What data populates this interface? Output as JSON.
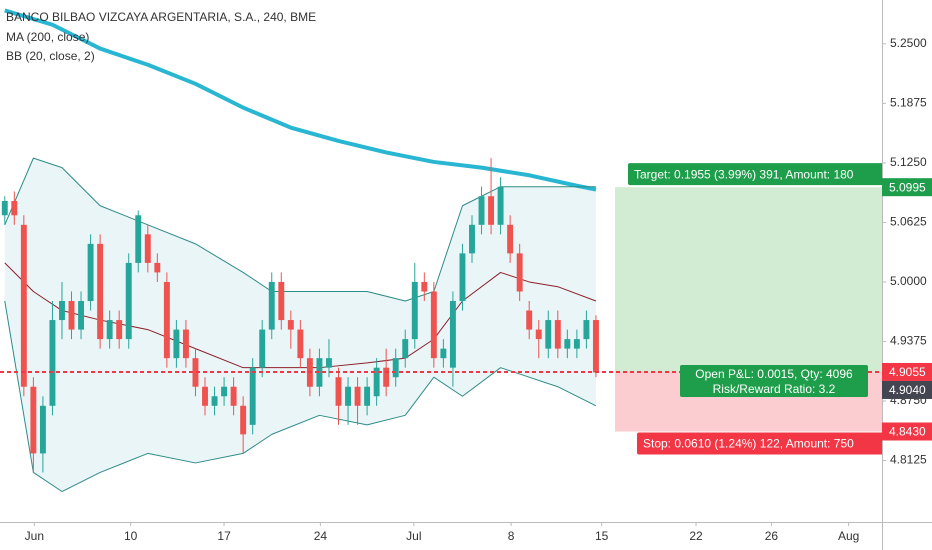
{
  "chart_data": {
    "type": "candlestick",
    "title": "BANCO BILBAO VIZCAYA ARGENTARIA, S.A., 240, BME",
    "up_color": "#26a69a",
    "down_color": "#ef5350",
    "xlim": [
      -0.5,
      92
    ],
    "xticks": [
      {
        "value": 3.1,
        "label": "Jun"
      },
      {
        "value": 13.2,
        "label": "10"
      },
      {
        "value": 23,
        "label": "17"
      },
      {
        "value": 33.1,
        "label": "24"
      },
      {
        "value": 42.9,
        "label": "Jul"
      },
      {
        "value": 53.1,
        "label": "8"
      },
      {
        "value": 62.6,
        "label": "15"
      },
      {
        "value": 72.5,
        "label": "22"
      },
      {
        "value": 80.4,
        "label": "26"
      },
      {
        "value": 88.5,
        "label": "Aug"
      }
    ],
    "ylim": [
      4.748,
      5.296
    ],
    "yticks": [
      {
        "value": 5.25,
        "label": "5.2500"
      },
      {
        "value": 5.1875,
        "label": "5.1875"
      },
      {
        "value": 5.125,
        "label": "5.1250"
      },
      {
        "value": 5.0625,
        "label": "5.0625"
      },
      {
        "value": 5.0,
        "label": "5.0000"
      },
      {
        "value": 4.9375,
        "label": "4.9375"
      },
      {
        "value": 4.875,
        "label": "4.8750"
      },
      {
        "value": 4.8125,
        "label": "4.8125"
      }
    ],
    "candles": {
      "x": [
        0,
        1,
        2,
        3,
        4,
        5,
        6,
        7,
        8,
        9,
        10,
        11,
        12,
        13,
        14,
        15,
        16,
        17,
        18,
        19,
        20,
        21,
        22,
        23,
        24,
        25,
        26,
        27,
        28,
        29,
        30,
        31,
        32,
        33,
        34,
        35,
        36,
        37,
        38,
        39,
        40,
        41,
        42,
        43,
        44,
        45,
        46,
        47,
        48,
        49,
        50,
        51,
        52,
        53,
        54,
        55,
        56,
        57,
        58,
        59,
        60,
        61,
        62
      ],
      "open": [
        5.07,
        5.085,
        5.06,
        4.89,
        4.82,
        4.87,
        4.96,
        4.98,
        4.95,
        4.98,
        5.04,
        4.94,
        4.96,
        4.94,
        5.02,
        5.05,
        5.02,
        5.0,
        4.92,
        4.95,
        4.92,
        4.89,
        4.87,
        4.88,
        4.89,
        4.87,
        4.85,
        4.91,
        4.95,
        5.0,
        4.96,
        4.95,
        4.92,
        4.89,
        4.91,
        4.9,
        4.87,
        4.89,
        4.87,
        4.88,
        4.91,
        4.9,
        4.92,
        4.94,
        5.0,
        4.99,
        4.92,
        4.91,
        4.98,
        5.03,
        5.06,
        5.09,
        5.06,
        5.06,
        5.03,
        4.97,
        4.95,
        4.93,
        4.96,
        4.93,
        4.93,
        4.94,
        4.96
      ],
      "high": [
        5.09,
        5.095,
        5.07,
        4.9,
        4.88,
        4.98,
        5.0,
        4.99,
        4.99,
        5.05,
        5.05,
        4.97,
        4.97,
        5.03,
        5.075,
        5.06,
        5.03,
        5.01,
        4.96,
        4.96,
        4.93,
        4.9,
        4.89,
        4.9,
        4.9,
        4.88,
        4.92,
        4.96,
        5.01,
        5.01,
        4.97,
        4.96,
        4.93,
        4.93,
        4.94,
        4.91,
        4.9,
        4.9,
        4.9,
        4.92,
        4.93,
        4.93,
        4.95,
        5.02,
        5.01,
        5.0,
        4.94,
        4.99,
        5.04,
        5.07,
        5.1,
        5.13,
        5.11,
        5.07,
        5.04,
        4.98,
        4.96,
        4.97,
        4.97,
        4.95,
        4.95,
        4.97,
        4.965
      ],
      "low": [
        5.06,
        5.06,
        4.88,
        4.8,
        4.8,
        4.86,
        4.94,
        4.94,
        4.94,
        4.97,
        4.93,
        4.93,
        4.93,
        4.93,
        5.01,
        5.01,
        5.0,
        4.91,
        4.91,
        4.91,
        4.88,
        4.86,
        4.86,
        4.87,
        4.86,
        4.82,
        4.84,
        4.9,
        4.94,
        4.95,
        4.93,
        4.91,
        4.88,
        4.88,
        4.9,
        4.85,
        4.85,
        4.85,
        4.86,
        4.87,
        4.88,
        4.89,
        4.91,
        4.93,
        4.98,
        4.91,
        4.91,
        4.89,
        4.97,
        5.02,
        5.05,
        5.05,
        5.05,
        5.02,
        4.98,
        4.94,
        4.92,
        4.92,
        4.92,
        4.92,
        4.92,
        4.93,
        4.9
      ],
      "close": [
        5.085,
        5.07,
        4.89,
        4.82,
        4.87,
        4.96,
        4.98,
        4.95,
        4.98,
        5.04,
        4.94,
        4.96,
        4.94,
        5.02,
        5.07,
        5.02,
        5.01,
        4.92,
        4.95,
        4.92,
        4.89,
        4.87,
        4.88,
        4.89,
        4.87,
        4.84,
        4.91,
        4.95,
        5.0,
        4.96,
        4.95,
        4.92,
        4.89,
        4.92,
        4.92,
        4.87,
        4.89,
        4.87,
        4.89,
        4.91,
        4.89,
        4.92,
        4.94,
        5.0,
        4.99,
        4.92,
        4.93,
        4.98,
        5.03,
        5.06,
        5.09,
        5.06,
        5.1,
        5.03,
        4.99,
        4.95,
        4.94,
        4.96,
        4.93,
        4.94,
        4.94,
        4.96,
        4.905
      ]
    },
    "indicators": [
      {
        "name": "MA (200, close)",
        "lines": [
          {
            "color": "#29b6d3",
            "width": 4,
            "x": [
              0,
              5,
              10,
              15,
              20,
              25,
              30,
              35,
              40,
              45,
              50,
              55,
              60,
              62
            ],
            "values": [
              5.285,
              5.27,
              5.245,
              5.228,
              5.208,
              5.183,
              5.162,
              5.148,
              5.136,
              5.126,
              5.12,
              5.112,
              5.101,
              5.097
            ]
          }
        ]
      },
      {
        "name": "BB (20, close, 2)",
        "fill": "#e9f5f7",
        "lines": [
          {
            "color": "#2e8b87",
            "width": 1,
            "x": [
              0,
              3,
              6,
              10,
              15,
              20,
              25,
              28,
              33,
              38,
              42,
              45,
              48,
              52,
              55,
              58,
              62
            ],
            "values": [
              5.06,
              5.13,
              5.12,
              5.08,
              5.06,
              5.04,
              5.01,
              4.99,
              4.99,
              4.99,
              4.98,
              4.99,
              5.08,
              5.1,
              5.1,
              5.1,
              5.1
            ]
          },
          {
            "color": "#8e1f2a",
            "width": 1,
            "x": [
              0,
              3,
              6,
              10,
              15,
              20,
              25,
              28,
              33,
              38,
              42,
              45,
              48,
              52,
              55,
              58,
              62
            ],
            "values": [
              5.02,
              4.99,
              4.97,
              4.96,
              4.95,
              4.93,
              4.91,
              4.91,
              4.91,
              4.915,
              4.92,
              4.94,
              4.98,
              5.01,
              5.0,
              4.995,
              4.98
            ]
          },
          {
            "color": "#2e8b87",
            "width": 1,
            "x": [
              0,
              3,
              6,
              10,
              15,
              20,
              25,
              28,
              33,
              38,
              42,
              45,
              48,
              52,
              55,
              58,
              62
            ],
            "values": [
              4.98,
              4.8,
              4.78,
              4.8,
              4.82,
              4.81,
              4.82,
              4.84,
              4.86,
              4.85,
              4.86,
              4.9,
              4.88,
              4.91,
              4.9,
              4.89,
              4.87
            ]
          }
        ]
      }
    ],
    "position": {
      "start": 64,
      "entry": 4.9055,
      "target": 5.0995,
      "stop": 4.843,
      "target_label": "Target: 0.1955 (3.99%) 391, Amount: 180",
      "pnl_label": "Open P&L: 0.0015, Qty: 4096",
      "rr_label": "Risk/Reward Ratio: 3.2",
      "stop_label": "Stop: 0.0610 (1.24%) 122, Amount: 750"
    },
    "price_markers": [
      {
        "value": 5.0995,
        "label": "5.0995",
        "color": "#1e9e4a"
      },
      {
        "value": 4.9055,
        "label": "4.9055",
        "color": "#f23645"
      },
      {
        "value": 4.904,
        "label": "4.9040",
        "color": "#434651"
      },
      {
        "value": 4.843,
        "label": "4.8430",
        "color": "#f23645"
      }
    ]
  }
}
